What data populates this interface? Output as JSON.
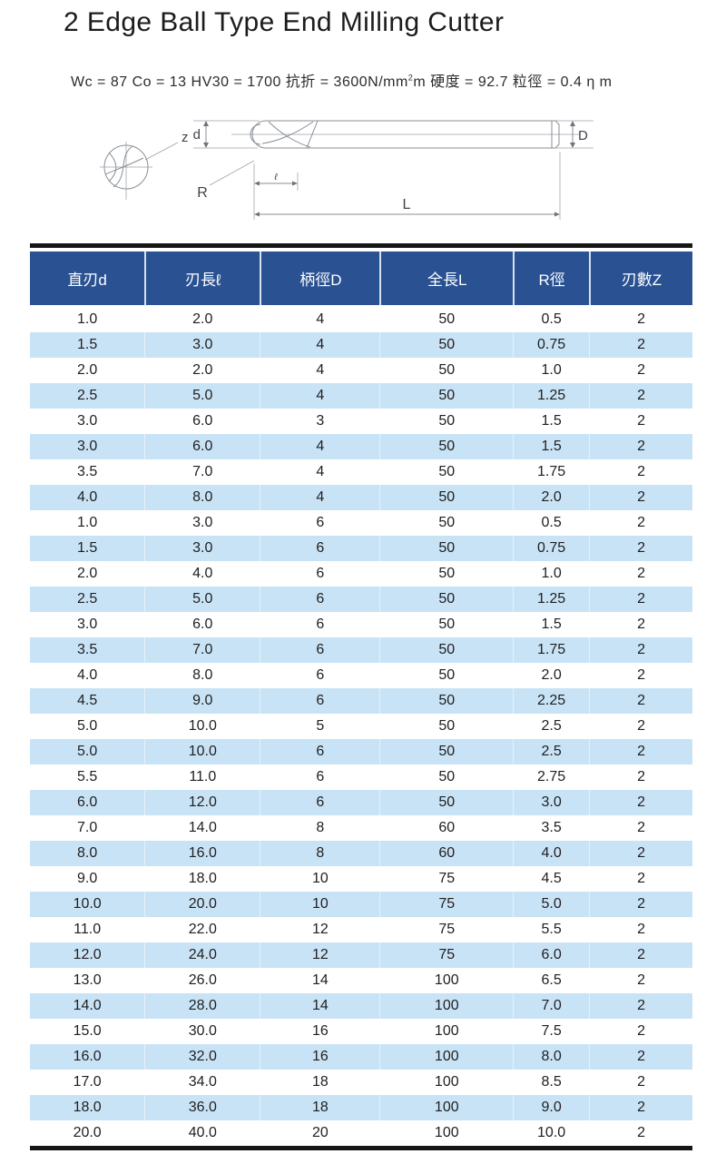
{
  "page": {
    "title": "2 Edge Ball Type End Milling Cutter",
    "spec": {
      "before_sup": "Wc = 87 Co = 13 HV30 = 1700 抗折 = 3600N/mm",
      "sup": "2",
      "after_sup": "m 硬度 = 92.7 粒徑 = 0.4 η m"
    }
  },
  "diagram": {
    "labels": {
      "flutes": "z",
      "cutting_diameter": "d",
      "radius": "R",
      "cutting_length": "ℓ",
      "overall_length": "L",
      "shank_diameter": "D"
    }
  },
  "table": {
    "columns": [
      "直刃d",
      "刃長ℓ",
      "柄徑D",
      "全長L",
      "R徑",
      "刃數Z"
    ],
    "rows": [
      [
        "1.0",
        "2.0",
        "4",
        "50",
        "0.5",
        "2"
      ],
      [
        "1.5",
        "3.0",
        "4",
        "50",
        "0.75",
        "2"
      ],
      [
        "2.0",
        "2.0",
        "4",
        "50",
        "1.0",
        "2"
      ],
      [
        "2.5",
        "5.0",
        "4",
        "50",
        "1.25",
        "2"
      ],
      [
        "3.0",
        "6.0",
        "3",
        "50",
        "1.5",
        "2"
      ],
      [
        "3.0",
        "6.0",
        "4",
        "50",
        "1.5",
        "2"
      ],
      [
        "3.5",
        "7.0",
        "4",
        "50",
        "1.75",
        "2"
      ],
      [
        "4.0",
        "8.0",
        "4",
        "50",
        "2.0",
        "2"
      ],
      [
        "1.0",
        "3.0",
        "6",
        "50",
        "0.5",
        "2"
      ],
      [
        "1.5",
        "3.0",
        "6",
        "50",
        "0.75",
        "2"
      ],
      [
        "2.0",
        "4.0",
        "6",
        "50",
        "1.0",
        "2"
      ],
      [
        "2.5",
        "5.0",
        "6",
        "50",
        "1.25",
        "2"
      ],
      [
        "3.0",
        "6.0",
        "6",
        "50",
        "1.5",
        "2"
      ],
      [
        "3.5",
        "7.0",
        "6",
        "50",
        "1.75",
        "2"
      ],
      [
        "4.0",
        "8.0",
        "6",
        "50",
        "2.0",
        "2"
      ],
      [
        "4.5",
        "9.0",
        "6",
        "50",
        "2.25",
        "2"
      ],
      [
        "5.0",
        "10.0",
        "5",
        "50",
        "2.5",
        "2"
      ],
      [
        "5.0",
        "10.0",
        "6",
        "50",
        "2.5",
        "2"
      ],
      [
        "5.5",
        "11.0",
        "6",
        "50",
        "2.75",
        "2"
      ],
      [
        "6.0",
        "12.0",
        "6",
        "50",
        "3.0",
        "2"
      ],
      [
        "7.0",
        "14.0",
        "8",
        "60",
        "3.5",
        "2"
      ],
      [
        "8.0",
        "16.0",
        "8",
        "60",
        "4.0",
        "2"
      ],
      [
        "9.0",
        "18.0",
        "10",
        "75",
        "4.5",
        "2"
      ],
      [
        "10.0",
        "20.0",
        "10",
        "75",
        "5.0",
        "2"
      ],
      [
        "11.0",
        "22.0",
        "12",
        "75",
        "5.5",
        "2"
      ],
      [
        "12.0",
        "24.0",
        "12",
        "75",
        "6.0",
        "2"
      ],
      [
        "13.0",
        "26.0",
        "14",
        "100",
        "6.5",
        "2"
      ],
      [
        "14.0",
        "28.0",
        "14",
        "100",
        "7.0",
        "2"
      ],
      [
        "15.0",
        "30.0",
        "16",
        "100",
        "7.5",
        "2"
      ],
      [
        "16.0",
        "32.0",
        "16",
        "100",
        "8.0",
        "2"
      ],
      [
        "17.0",
        "34.0",
        "18",
        "100",
        "8.5",
        "2"
      ],
      [
        "18.0",
        "36.0",
        "18",
        "100",
        "9.0",
        "2"
      ],
      [
        "20.0",
        "40.0",
        "20",
        "100",
        "10.0",
        "2"
      ]
    ],
    "colors": {
      "header_bg": "#2a5293",
      "stripe_bg": "#c9e3f6",
      "bar": "#161616"
    }
  }
}
